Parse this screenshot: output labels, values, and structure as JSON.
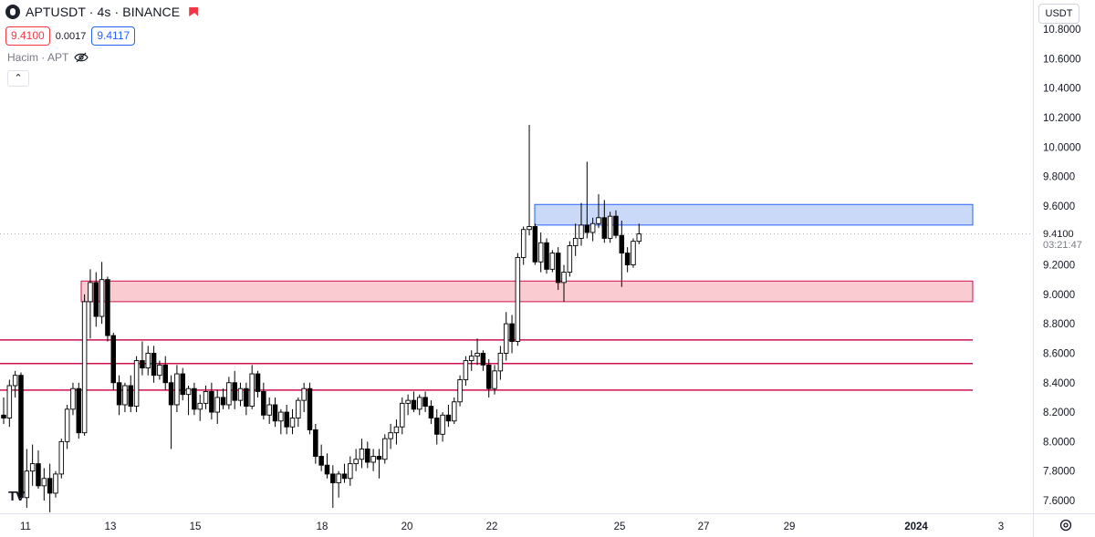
{
  "symbol": {
    "title": "APTUSDT · 4s · BINANCE",
    "logo_icon": "aptos-logo-icon",
    "live_icon": "market-open-flag-icon"
  },
  "quotes": {
    "sell": "9.4100",
    "spread": "0.0017",
    "buy": "9.4117"
  },
  "volume": {
    "label": "Hacim · APT",
    "toggle_icon": "eye-crossed-icon"
  },
  "collapse": {
    "label": "⌃"
  },
  "currency": {
    "label": "USDT"
  },
  "current_price": {
    "value": "9.4100",
    "countdown": "03:21:47"
  },
  "colors": {
    "up": "#ffffff",
    "down": "#000000",
    "wick": "#000000",
    "demand_zone": "#f7a8b0",
    "supply_zone": "#a9c0f5",
    "level_line": "#d1114c"
  },
  "chart_data": {
    "type": "candlestick",
    "y_axis": {
      "min": 7.55,
      "max": 10.85,
      "ticks": [
        "10.8000",
        "10.6000",
        "10.4000",
        "10.2000",
        "10.0000",
        "9.8000",
        "9.6000",
        "9.2000",
        "9.0000",
        "8.8000",
        "8.6000",
        "8.4000",
        "8.2000",
        "8.0000",
        "7.8000",
        "7.6000"
      ]
    },
    "x_axis": {
      "labels": [
        "11",
        "13",
        "15",
        "18",
        "20",
        "22",
        "25",
        "27",
        "29",
        "2024",
        "3"
      ]
    },
    "zones": [
      {
        "kind": "supply",
        "from": 9.47,
        "to": 9.61
      },
      {
        "kind": "demand",
        "from": 8.95,
        "to": 9.09
      }
    ],
    "levels": [
      8.69,
      8.53,
      8.35
    ],
    "candles": [
      [
        8.18,
        8.3,
        8.12,
        8.16
      ],
      [
        8.16,
        8.42,
        8.1,
        8.38
      ],
      [
        8.38,
        8.48,
        8.3,
        8.45
      ],
      [
        8.45,
        8.47,
        7.6,
        7.62
      ],
      [
        7.62,
        7.95,
        7.55,
        7.8
      ],
      [
        7.8,
        7.98,
        7.7,
        7.85
      ],
      [
        7.85,
        7.94,
        7.68,
        7.7
      ],
      [
        7.7,
        7.82,
        7.6,
        7.75
      ],
      [
        7.75,
        7.85,
        7.52,
        7.65
      ],
      [
        7.65,
        7.8,
        7.62,
        7.78
      ],
      [
        7.78,
        8.02,
        7.75,
        8.0
      ],
      [
        8.0,
        8.25,
        7.95,
        8.22
      ],
      [
        8.22,
        8.4,
        8.18,
        8.36
      ],
      [
        8.36,
        8.4,
        8.02,
        8.06
      ],
      [
        8.06,
        9.0,
        8.04,
        8.95
      ],
      [
        8.95,
        9.17,
        8.7,
        9.08
      ],
      [
        9.08,
        9.15,
        8.78,
        8.85
      ],
      [
        8.85,
        9.22,
        8.8,
        9.1
      ],
      [
        9.1,
        9.12,
        8.68,
        8.72
      ],
      [
        8.72,
        8.74,
        8.35,
        8.4
      ],
      [
        8.4,
        8.45,
        8.18,
        8.25
      ],
      [
        8.25,
        8.4,
        8.2,
        8.38
      ],
      [
        8.38,
        8.45,
        8.2,
        8.24
      ],
      [
        8.24,
        8.58,
        8.2,
        8.55
      ],
      [
        8.55,
        8.68,
        8.45,
        8.5
      ],
      [
        8.5,
        8.65,
        8.45,
        8.6
      ],
      [
        8.6,
        8.65,
        8.4,
        8.45
      ],
      [
        8.45,
        8.55,
        8.42,
        8.52
      ],
      [
        8.52,
        8.58,
        8.35,
        8.4
      ],
      [
        8.4,
        8.45,
        7.95,
        8.25
      ],
      [
        8.25,
        8.52,
        8.2,
        8.46
      ],
      [
        8.46,
        8.5,
        8.28,
        8.32
      ],
      [
        8.32,
        8.38,
        8.18,
        8.36
      ],
      [
        8.36,
        8.4,
        8.18,
        8.22
      ],
      [
        8.22,
        8.32,
        8.14,
        8.26
      ],
      [
        8.26,
        8.38,
        8.22,
        8.34
      ],
      [
        8.34,
        8.4,
        8.15,
        8.2
      ],
      [
        8.2,
        8.35,
        8.12,
        8.3
      ],
      [
        8.3,
        8.36,
        8.22,
        8.25
      ],
      [
        8.25,
        8.44,
        8.22,
        8.4
      ],
      [
        8.4,
        8.48,
        8.22,
        8.28
      ],
      [
        8.28,
        8.4,
        8.24,
        8.36
      ],
      [
        8.36,
        8.4,
        8.18,
        8.24
      ],
      [
        8.24,
        8.52,
        8.22,
        8.46
      ],
      [
        8.46,
        8.48,
        8.3,
        8.34
      ],
      [
        8.34,
        8.4,
        8.15,
        8.18
      ],
      [
        8.18,
        8.3,
        8.12,
        8.25
      ],
      [
        8.25,
        8.3,
        8.1,
        8.14
      ],
      [
        8.14,
        8.22,
        8.05,
        8.2
      ],
      [
        8.2,
        8.25,
        8.05,
        8.1
      ],
      [
        8.1,
        8.22,
        8.05,
        8.16
      ],
      [
        8.16,
        8.3,
        8.1,
        8.28
      ],
      [
        8.28,
        8.4,
        8.2,
        8.36
      ],
      [
        8.36,
        8.4,
        8.05,
        8.08
      ],
      [
        8.08,
        8.12,
        7.85,
        7.9
      ],
      [
        7.9,
        7.98,
        7.8,
        7.84
      ],
      [
        7.84,
        7.92,
        7.75,
        7.78
      ],
      [
        7.78,
        7.84,
        7.55,
        7.72
      ],
      [
        7.72,
        7.8,
        7.62,
        7.78
      ],
      [
        7.78,
        7.85,
        7.72,
        7.75
      ],
      [
        7.75,
        7.9,
        7.7,
        7.85
      ],
      [
        7.85,
        7.95,
        7.8,
        7.88
      ],
      [
        7.88,
        8.02,
        7.82,
        7.95
      ],
      [
        7.95,
        8.0,
        7.82,
        7.86
      ],
      [
        7.86,
        7.95,
        7.8,
        7.9
      ],
      [
        7.9,
        7.95,
        7.75,
        7.88
      ],
      [
        7.88,
        8.05,
        7.85,
        8.02
      ],
      [
        8.02,
        8.12,
        7.95,
        8.06
      ],
      [
        8.06,
        8.15,
        7.98,
        8.1
      ],
      [
        8.1,
        8.3,
        8.05,
        8.26
      ],
      [
        8.26,
        8.32,
        8.18,
        8.28
      ],
      [
        8.28,
        8.34,
        8.2,
        8.22
      ],
      [
        8.22,
        8.32,
        8.18,
        8.3
      ],
      [
        8.3,
        8.34,
        8.2,
        8.24
      ],
      [
        8.24,
        8.28,
        8.12,
        8.16
      ],
      [
        8.16,
        8.22,
        7.98,
        8.05
      ],
      [
        8.05,
        8.2,
        8.0,
        8.18
      ],
      [
        8.18,
        8.25,
        8.1,
        8.14
      ],
      [
        8.14,
        8.3,
        8.12,
        8.27
      ],
      [
        8.27,
        8.45,
        8.24,
        8.42
      ],
      [
        8.42,
        8.58,
        8.38,
        8.55
      ],
      [
        8.55,
        8.62,
        8.48,
        8.58
      ],
      [
        8.58,
        8.7,
        8.52,
        8.6
      ],
      [
        8.6,
        8.62,
        8.48,
        8.52
      ],
      [
        8.52,
        8.56,
        8.3,
        8.36
      ],
      [
        8.36,
        8.52,
        8.32,
        8.48
      ],
      [
        8.48,
        8.65,
        8.42,
        8.6
      ],
      [
        8.6,
        8.88,
        8.55,
        8.8
      ],
      [
        8.8,
        8.86,
        8.6,
        8.68
      ],
      [
        8.68,
        9.28,
        8.65,
        9.25
      ],
      [
        9.25,
        9.46,
        9.2,
        9.44
      ],
      [
        9.44,
        10.15,
        9.4,
        9.46
      ],
      [
        9.46,
        9.48,
        9.2,
        9.22
      ],
      [
        9.22,
        9.42,
        9.15,
        9.35
      ],
      [
        9.35,
        9.38,
        9.14,
        9.17
      ],
      [
        9.17,
        9.3,
        9.15,
        9.28
      ],
      [
        9.28,
        9.32,
        9.03,
        9.08
      ],
      [
        9.08,
        9.2,
        8.95,
        9.15
      ],
      [
        9.15,
        9.36,
        9.12,
        9.33
      ],
      [
        9.33,
        9.48,
        9.26,
        9.38
      ],
      [
        9.38,
        9.62,
        9.33,
        9.47
      ],
      [
        9.47,
        9.9,
        9.38,
        9.42
      ],
      [
        9.42,
        9.52,
        9.36,
        9.48
      ],
      [
        9.48,
        9.68,
        9.45,
        9.52
      ],
      [
        9.52,
        9.64,
        9.35,
        9.38
      ],
      [
        9.38,
        9.56,
        9.35,
        9.53
      ],
      [
        9.53,
        9.57,
        9.38,
        9.4
      ],
      [
        9.4,
        9.5,
        9.05,
        9.28
      ],
      [
        9.28,
        9.32,
        9.15,
        9.2
      ],
      [
        9.2,
        9.38,
        9.18,
        9.36
      ],
      [
        9.36,
        9.48,
        9.34,
        9.41
      ]
    ]
  }
}
